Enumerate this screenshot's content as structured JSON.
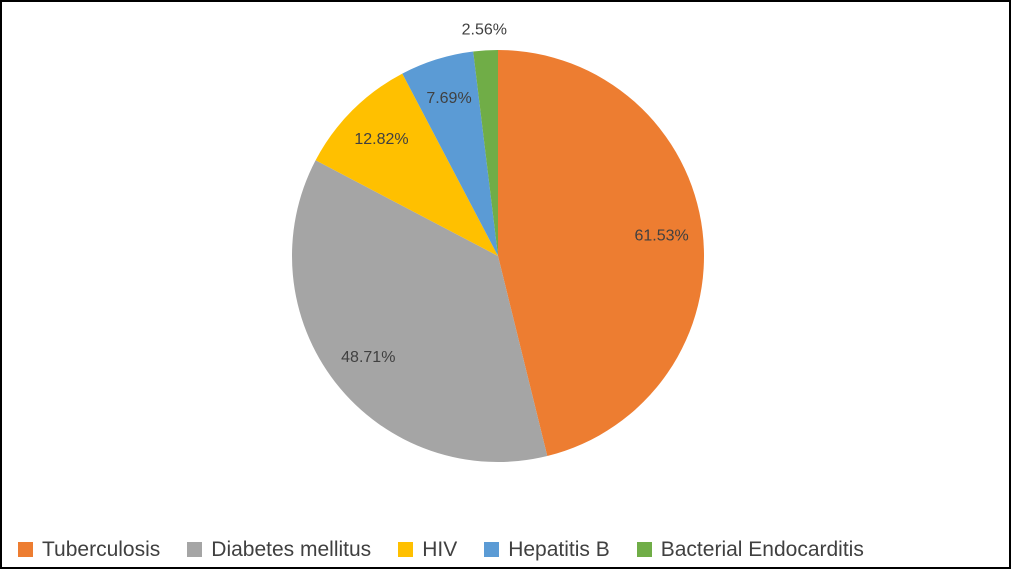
{
  "chart_data": {
    "type": "pie",
    "title": "",
    "categories": [
      "Tuberculosis",
      "Diabetes mellitus",
      "HIV",
      "Hepatitis B",
      "Bacterial Endocarditis"
    ],
    "values": [
      61.53,
      48.71,
      12.82,
      7.69,
      2.56
    ],
    "value_labels": [
      "61.53%",
      "48.71%",
      "12.82%",
      "7.69%",
      "2.56%"
    ],
    "colors": [
      "#ED7D31",
      "#A5A5A5",
      "#FFC000",
      "#5B9BD5",
      "#70AD47"
    ],
    "label_color": "#404040",
    "start_angle_deg": 0,
    "direction": "clockwise",
    "legend_position": "bottom",
    "grid": false
  }
}
